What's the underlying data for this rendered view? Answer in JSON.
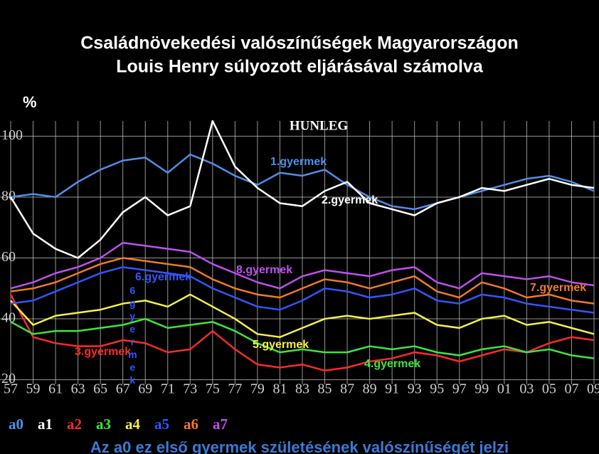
{
  "chart_data": {
    "type": "line",
    "title": "Családnövekedési valószínűségek Magyarországon",
    "subtitle": "Louis Henry súlyozott eljárásával számolva",
    "y_label": "%",
    "inset_title": "HUNLEG",
    "footnote": "Az a0 ez első gyermek születésének valószínűségét jelzi",
    "vertical_annotation": "6gyermek",
    "categories": [
      "57",
      "59",
      "61",
      "63",
      "65",
      "67",
      "69",
      "71",
      "73",
      "75",
      "77",
      "79",
      "81",
      "83",
      "85",
      "87",
      "89",
      "91",
      "93",
      "95",
      "97",
      "99",
      "01",
      "03",
      "05",
      "07",
      "09"
    ],
    "ylim": [
      15,
      105
    ],
    "yticks": [
      20,
      40,
      60,
      80,
      100
    ],
    "grid": true,
    "series": [
      {
        "name": "a0",
        "label": "1.gyermek",
        "color": "#4f8fe8",
        "values": [
          80,
          81,
          80,
          85,
          89,
          92,
          93,
          88,
          94,
          91,
          87,
          84,
          88,
          87,
          89,
          84,
          80,
          77,
          76,
          78,
          80,
          82,
          84,
          86,
          87,
          85,
          82
        ]
      },
      {
        "name": "a1",
        "label": "2.gyermek",
        "color": "#ffffff",
        "values": [
          80,
          68,
          63,
          60,
          66,
          75,
          80,
          74,
          77,
          105,
          90,
          83,
          78,
          77,
          82,
          85,
          78,
          76,
          74,
          78,
          80,
          83,
          82,
          84,
          86,
          84,
          83
        ]
      },
      {
        "name": "a2",
        "label": "3.gyermek",
        "color": "#ff2a2a",
        "values": [
          48,
          34,
          32,
          31,
          31,
          33,
          32,
          29,
          30,
          36,
          30,
          25,
          24,
          25,
          23,
          24,
          26,
          27,
          29,
          28,
          26,
          28,
          30,
          29,
          32,
          34,
          33
        ]
      },
      {
        "name": "a3",
        "label": "4.gyermek",
        "color": "#3ee63e",
        "values": [
          39,
          35,
          36,
          36,
          37,
          38,
          40,
          37,
          38,
          39,
          36,
          32,
          29,
          30,
          29,
          29,
          31,
          30,
          31,
          29,
          28,
          30,
          31,
          29,
          30,
          28,
          27
        ]
      },
      {
        "name": "a4",
        "label": "5.gyermek",
        "color": "#f5f04a",
        "values": [
          46,
          38,
          41,
          42,
          43,
          45,
          46,
          44,
          48,
          44,
          40,
          35,
          34,
          37,
          40,
          41,
          40,
          41,
          42,
          38,
          37,
          40,
          41,
          38,
          39,
          37,
          35
        ]
      },
      {
        "name": "a5",
        "label": "6.gyermek",
        "color": "#3355ff",
        "values": [
          45,
          46,
          49,
          52,
          55,
          57,
          56,
          55,
          54,
          50,
          47,
          44,
          43,
          46,
          50,
          49,
          47,
          48,
          50,
          46,
          45,
          48,
          47,
          45,
          44,
          43,
          42
        ]
      },
      {
        "name": "a6",
        "label": "7.gyermek",
        "color": "#f07a2a",
        "values": [
          49,
          50,
          52,
          55,
          58,
          60,
          59,
          58,
          57,
          53,
          50,
          48,
          47,
          50,
          53,
          52,
          50,
          52,
          54,
          49,
          47,
          52,
          50,
          47,
          48,
          46,
          45
        ]
      },
      {
        "name": "a7",
        "label": "8.gyermek",
        "color": "#c050f0",
        "values": [
          50,
          52,
          55,
          57,
          60,
          65,
          64,
          63,
          62,
          58,
          55,
          52,
          50,
          54,
          56,
          55,
          54,
          56,
          57,
          52,
          50,
          55,
          54,
          53,
          54,
          52,
          51
        ]
      }
    ]
  }
}
